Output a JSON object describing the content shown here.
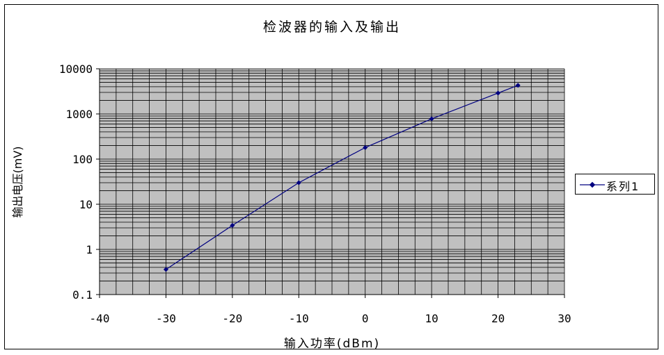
{
  "chart_data": {
    "type": "line",
    "title": "检波器的输入及输出",
    "xlabel": "输入功率(dBm)",
    "ylabel": "输出电压(mV)",
    "xlim": [
      -40,
      30
    ],
    "ylim": [
      0.1,
      10000
    ],
    "yscale": "log",
    "x_ticks": [
      "-40",
      "-30",
      "-20",
      "-10",
      "0",
      "10",
      "20",
      "30"
    ],
    "y_ticks": [
      "0.1",
      "1",
      "10",
      "100",
      "1000",
      "10000"
    ],
    "grid": true,
    "legend_position": "right",
    "colors": {
      "series": "#000080",
      "plot_bg": "#c0c0c0",
      "grid": "#000000"
    },
    "series": [
      {
        "name": "系列1",
        "x": [
          -30,
          -20,
          -10,
          0,
          10,
          20,
          23
        ],
        "y": [
          0.36,
          3.4,
          30,
          180,
          780,
          2900,
          4300
        ]
      }
    ]
  }
}
